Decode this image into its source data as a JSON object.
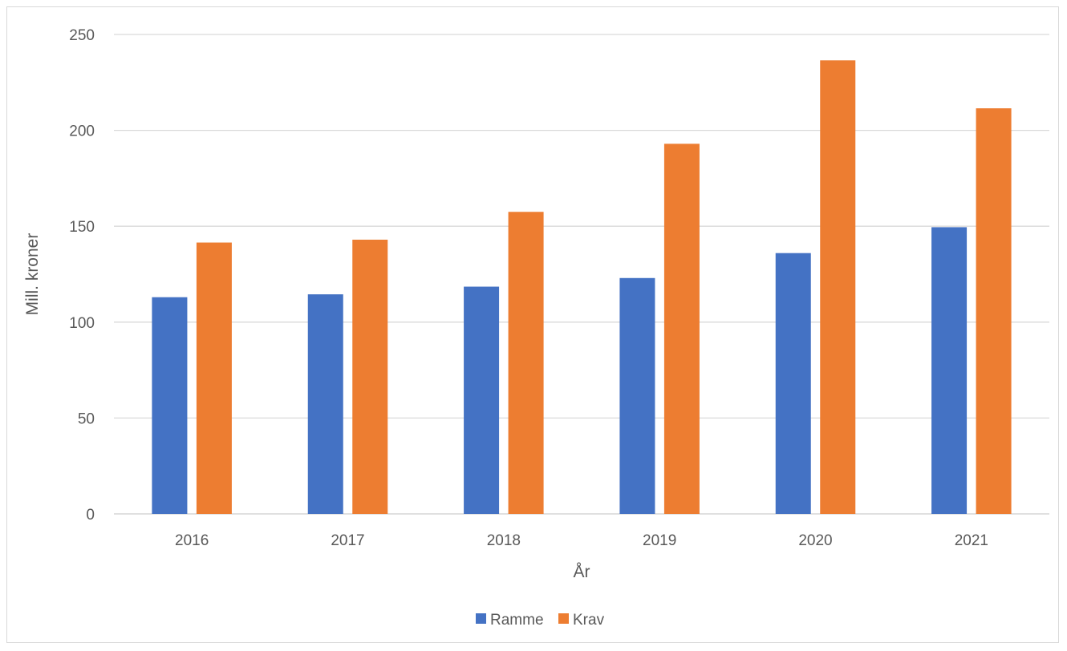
{
  "chart_data": {
    "type": "bar",
    "title": "",
    "xlabel": "År",
    "ylabel": "Mill. kroner",
    "categories": [
      "2016",
      "2017",
      "2018",
      "2019",
      "2020",
      "2021"
    ],
    "series": [
      {
        "name": "Ramme",
        "color": "#4472C4",
        "values": [
          113,
          114.5,
          118.5,
          123,
          136,
          149.5
        ]
      },
      {
        "name": "Krav",
        "color": "#ED7D31",
        "values": [
          141.5,
          143,
          157.5,
          193,
          236.5,
          211.5
        ]
      }
    ],
    "ylim": [
      0,
      250
    ],
    "yticks": [
      "0",
      "50",
      "100",
      "150",
      "200",
      "250"
    ],
    "grid": true,
    "legend_position": "bottom"
  }
}
